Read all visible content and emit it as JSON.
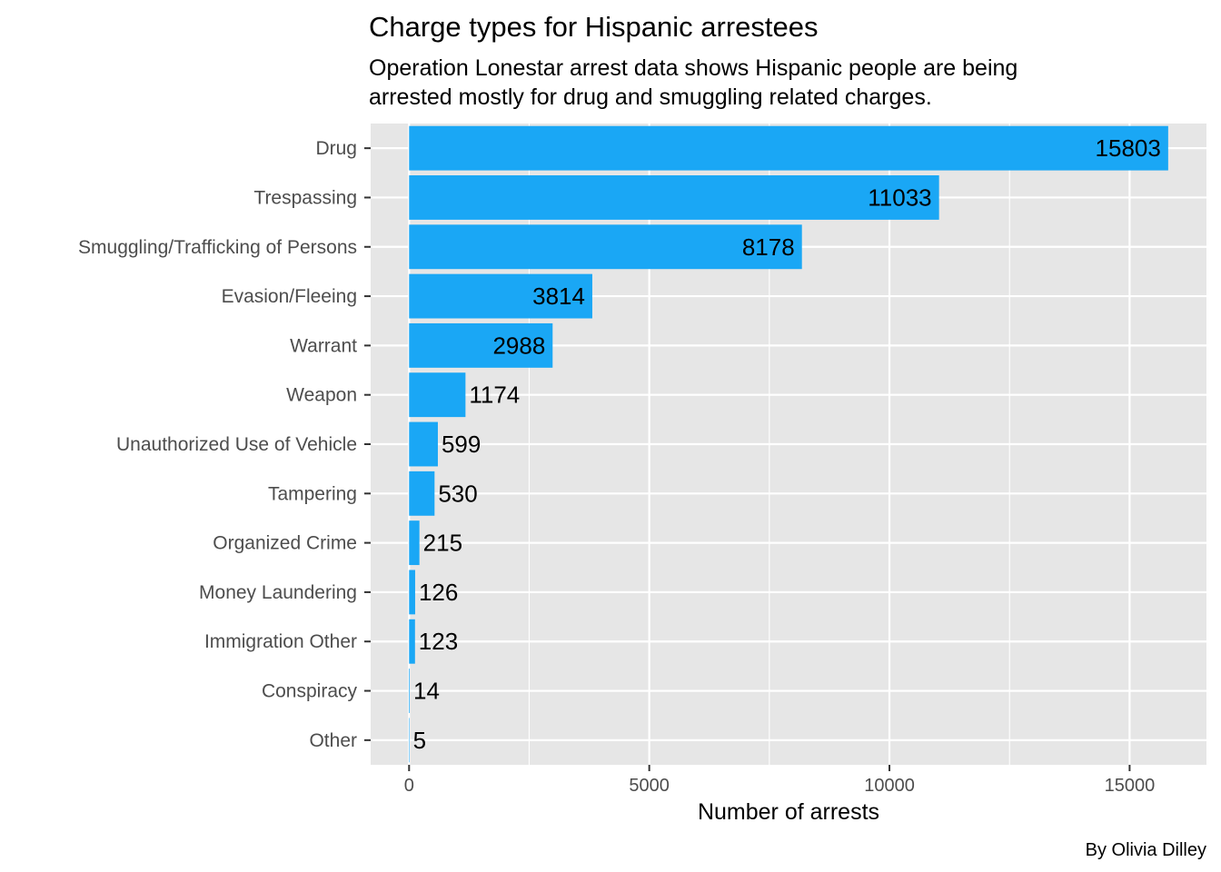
{
  "chart_data": {
    "type": "bar",
    "orientation": "horizontal",
    "title": "Charge types for Hispanic arrestees",
    "subtitle": [
      "Operation Lonestar arrest data shows Hispanic people are being",
      "arrested mostly for drug and smuggling related charges."
    ],
    "xlabel": "Number of arrests",
    "ylabel": "",
    "caption": "By Olivia Dilley",
    "categories": [
      "Drug",
      "Trespassing",
      "Smuggling/Trafficking of Persons",
      "Evasion/Fleeing",
      "Warrant",
      "Weapon",
      "Unauthorized Use of Vehicle",
      "Tampering",
      "Organized Crime",
      "Money Laundering",
      "Immigration Other",
      "Conspiracy",
      "Other"
    ],
    "values": [
      15803,
      11033,
      8178,
      3814,
      2988,
      1174,
      599,
      530,
      215,
      126,
      123,
      14,
      5
    ],
    "xlim": [
      -800,
      16600
    ],
    "xticks": [
      0,
      5000,
      10000,
      15000
    ],
    "xtick_labels": [
      "0",
      "5000",
      "10000",
      "15000"
    ],
    "minor_xticks": [
      2500,
      7500,
      12500
    ],
    "grid": true,
    "legend": "none",
    "colors": {
      "bar": "#1aa7f5",
      "panel": "#e6e6e6",
      "grid": "#ffffff"
    }
  }
}
